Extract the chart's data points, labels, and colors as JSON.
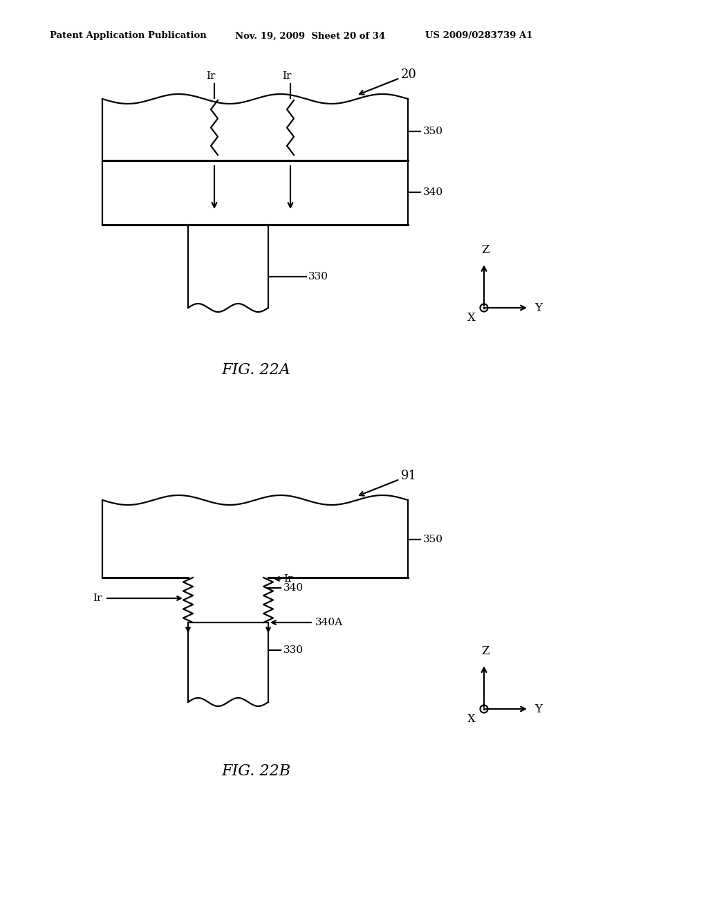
{
  "bg_color": "#ffffff",
  "header_left": "Patent Application Publication",
  "header_mid": "Nov. 19, 2009  Sheet 20 of 34",
  "header_right": "US 2009/0283739 A1",
  "fig_a_label": "FIG. 22A",
  "fig_b_label": "FIG. 22B",
  "fig_a_number": "20",
  "fig_b_number": "91",
  "label_350": "350",
  "label_340": "340",
  "label_340A": "340A",
  "label_330": "330",
  "label_Ir": "Ir"
}
